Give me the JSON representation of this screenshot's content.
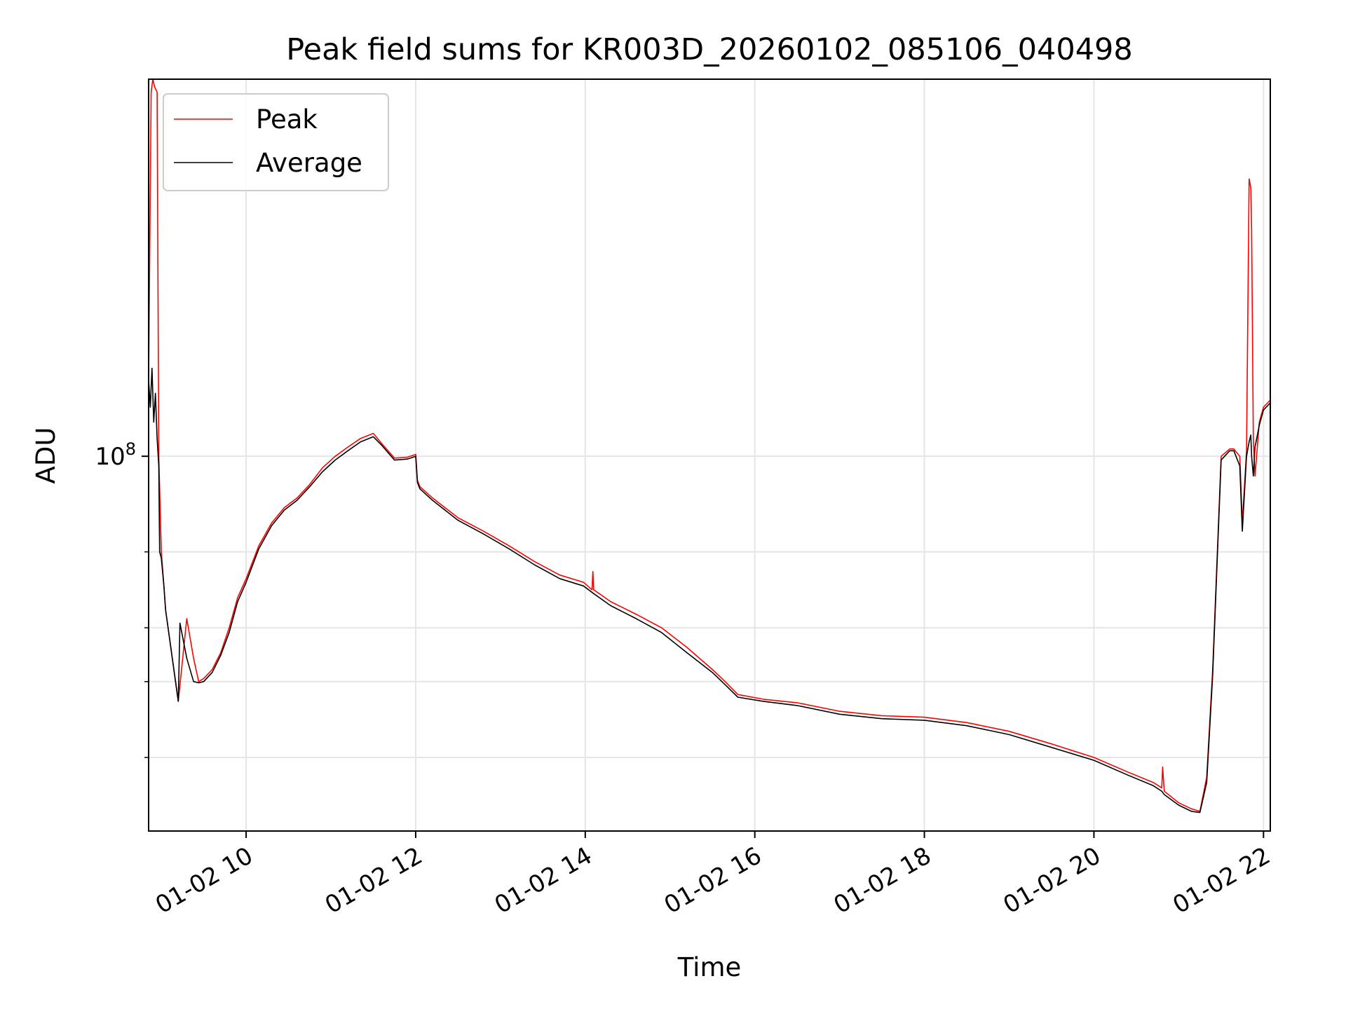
{
  "chart_data": {
    "type": "line",
    "title": "Peak field sums for KR003D_20260102_085106_040498",
    "xlabel": "Time",
    "ylabel": "ADU",
    "yscale": "log",
    "ylim": [
      13500000,
      750000000
    ],
    "xlim": [
      8.85,
      22.08
    ],
    "grid": true,
    "legend_position": "top-left",
    "x_tick_values": [
      10,
      12,
      14,
      16,
      18,
      20,
      22
    ],
    "x_tick_labels": [
      "01-02 10",
      "01-02 12",
      "01-02 14",
      "01-02 16",
      "01-02 18",
      "01-02 20",
      "01-02 22"
    ],
    "y_major_ticks": [
      {
        "value": 100000000,
        "base": "10",
        "exp": "8"
      }
    ],
    "y_minor_ticks": [
      20000000,
      30000000,
      40000000,
      60000000
    ],
    "colors": {
      "peak": "#ff0000",
      "average": "#000000",
      "grid": "#e5e5e5"
    },
    "series": [
      {
        "name": "Peak",
        "color": "#ff0000",
        "x": [
          8.85,
          8.88,
          8.9,
          8.92,
          8.95,
          8.97,
          9.0,
          9.03,
          9.05,
          9.2,
          9.3,
          9.38,
          9.44,
          9.5,
          9.6,
          9.7,
          9.8,
          9.9,
          10.0,
          10.15,
          10.3,
          10.45,
          10.6,
          10.75,
          10.9,
          11.05,
          11.2,
          11.35,
          11.5,
          11.6,
          11.75,
          11.9,
          12.0,
          12.02,
          12.05,
          12.2,
          12.5,
          12.8,
          13.1,
          13.4,
          13.7,
          13.98,
          14.08,
          14.09,
          14.1,
          14.3,
          14.6,
          14.9,
          15.2,
          15.5,
          15.65,
          15.8,
          16.1,
          16.5,
          17.0,
          17.5,
          18.0,
          18.5,
          19.0,
          19.5,
          20.0,
          20.4,
          20.7,
          20.8,
          20.81,
          20.83,
          21.0,
          21.15,
          21.25,
          21.33,
          21.4,
          21.5,
          21.6,
          21.65,
          21.72,
          21.75,
          21.8,
          21.83,
          21.85,
          21.86,
          21.88,
          21.9,
          21.95,
          22.0,
          22.08
        ],
        "y": [
          150000000,
          700000000,
          750000000,
          720000000,
          700000000,
          100000000,
          60000000,
          50000000,
          44000000,
          27000000,
          42000000,
          34000000,
          30000000,
          30500000,
          32000000,
          35000000,
          40000000,
          47000000,
          52000000,
          62000000,
          70000000,
          76000000,
          80000000,
          86000000,
          94000000,
          100000000,
          105000000,
          110000000,
          113000000,
          107000000,
          99000000,
          99500000,
          101000000,
          88000000,
          85000000,
          80000000,
          72000000,
          67000000,
          62000000,
          57000000,
          53000000,
          51000000,
          49000000,
          54000000,
          49000000,
          46000000,
          43000000,
          40000000,
          36000000,
          32000000,
          30000000,
          28000000,
          27300000,
          26800000,
          25600000,
          25000000,
          24800000,
          24100000,
          23000000,
          21500000,
          20000000,
          18500000,
          17500000,
          17000000,
          19000000,
          16700000,
          15700000,
          15200000,
          15000000,
          18000000,
          32000000,
          100000000,
          104000000,
          104000000,
          100000000,
          70000000,
          103000000,
          440000000,
          420000000,
          330000000,
          110000000,
          90000000,
          120000000,
          130000000,
          135000000
        ]
      },
      {
        "name": "Average",
        "color": "#000000",
        "x": [
          8.85,
          8.87,
          8.89,
          8.91,
          8.93,
          8.95,
          8.97,
          8.98,
          9.0,
          9.03,
          9.05,
          9.2,
          9.22,
          9.3,
          9.38,
          9.44,
          9.5,
          9.6,
          9.7,
          9.8,
          9.9,
          10.0,
          10.15,
          10.3,
          10.45,
          10.6,
          10.75,
          10.9,
          11.05,
          11.2,
          11.35,
          11.5,
          11.6,
          11.75,
          11.9,
          12.0,
          12.02,
          12.05,
          12.2,
          12.5,
          12.8,
          13.1,
          13.4,
          13.7,
          13.98,
          14.1,
          14.3,
          14.6,
          14.9,
          15.2,
          15.5,
          15.65,
          15.8,
          16.1,
          16.5,
          17.0,
          17.5,
          18.0,
          18.5,
          19.0,
          19.5,
          20.0,
          20.4,
          20.7,
          20.8,
          20.83,
          21.0,
          21.15,
          21.25,
          21.33,
          21.4,
          21.5,
          21.6,
          21.65,
          21.72,
          21.75,
          21.8,
          21.83,
          21.85,
          21.86,
          21.88,
          21.9,
          21.95,
          22.0,
          22.08
        ],
        "y": [
          150000000,
          130000000,
          160000000,
          120000000,
          140000000,
          110000000,
          95000000,
          60000000,
          58000000,
          50000000,
          44000000,
          27000000,
          41000000,
          34000000,
          30000000,
          29800000,
          30000000,
          31500000,
          34500000,
          39000000,
          46000000,
          51000000,
          61000000,
          69000000,
          75000000,
          79000000,
          85000000,
          92000000,
          98000000,
          103000000,
          108000000,
          111000000,
          106000000,
          98000000,
          98500000,
          100000000,
          87000000,
          84000000,
          79000000,
          71000000,
          66000000,
          61000000,
          56000000,
          52000000,
          50000000,
          48000000,
          45000000,
          42000000,
          39000000,
          35000000,
          31500000,
          29500000,
          27600000,
          27000000,
          26400000,
          25200000,
          24600000,
          24400000,
          23700000,
          22600000,
          21100000,
          19700000,
          18200000,
          17200000,
          16700000,
          16400000,
          15500000,
          15000000,
          14900000,
          17500000,
          31000000,
          98000000,
          103000000,
          103000000,
          95000000,
          67000000,
          100000000,
          108000000,
          112000000,
          100000000,
          90000000,
          105000000,
          118000000,
          128000000,
          133000000
        ]
      }
    ]
  }
}
